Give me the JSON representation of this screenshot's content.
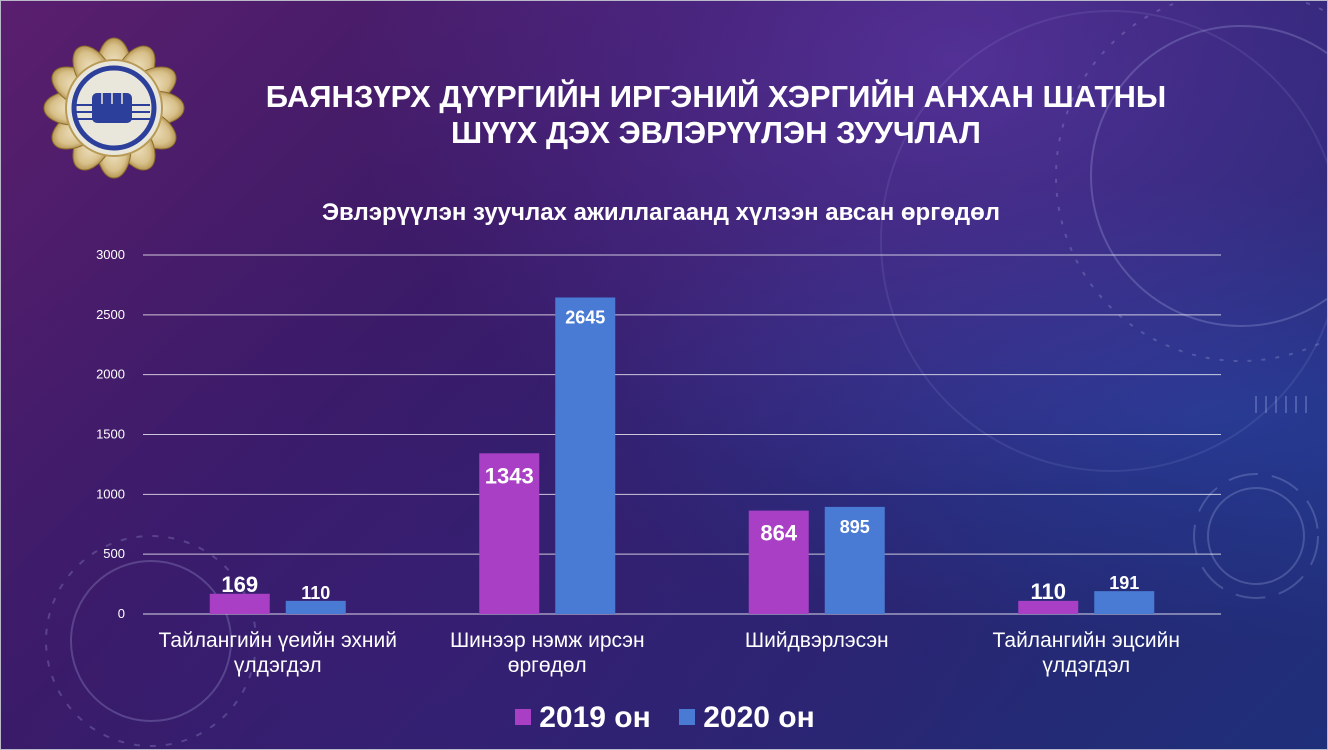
{
  "title_lines": [
    "БАЯНЗҮРХ ДҮҮРГИЙН ИРГЭНИЙ ХЭРГИЙН АНХАН ШАТНЫ",
    "ШҮҮХ ДЭХ ЭВЛЭРҮҮЛЭН ЗУУЧЛАЛ"
  ],
  "colors": {
    "series_2019": "#a83fc4",
    "series_2020": "#4a7bd4"
  },
  "chart_data": {
    "type": "bar",
    "title": "Эвлэрүүлэн зуучлах ажиллагаанд хүлээн авсан өргөдөл",
    "categories": [
      [
        "Тайлангийн үеийн эхний",
        "үлдэгдэл"
      ],
      [
        "Шинээр нэмж ирсэн",
        "өргөдөл"
      ],
      [
        "Шийдвэрлэсэн"
      ],
      [
        "Тайлангийн эцсийн",
        "үлдэгдэл"
      ]
    ],
    "series": [
      {
        "name": "2019 он",
        "values": [
          169,
          1343,
          864,
          110
        ]
      },
      {
        "name": "2020 он",
        "values": [
          110,
          2645,
          895,
          191
        ]
      }
    ],
    "ylim": [
      0,
      3000
    ],
    "yticks": [
      0,
      500,
      1000,
      1500,
      2000,
      2500,
      3000
    ],
    "grid": true,
    "legend_position": "bottom"
  }
}
